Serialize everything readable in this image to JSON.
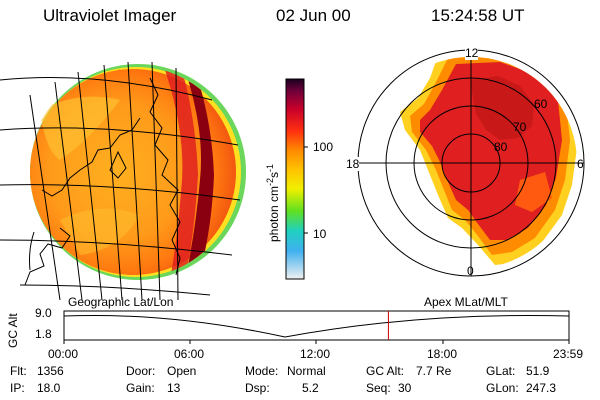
{
  "header": {
    "title": "Ultraviolet Imager",
    "date": "02 Jun 00",
    "time": "15:24:58 UT"
  },
  "colorbar": {
    "label": "photon cm",
    "unit_sup1": "-2",
    "unit_mid": "s",
    "unit_sup2": "-1",
    "ticks": [
      "100",
      "10"
    ]
  },
  "left_panel": {
    "caption": "Geographic Lat/Lon"
  },
  "right_panel": {
    "caption": "Apex MLat/MLT",
    "mlt_labels": {
      "top": "12",
      "left": "18",
      "right": "6",
      "bottom": "0"
    },
    "ring_labels": [
      "60",
      "70",
      "80"
    ]
  },
  "timeline": {
    "ylabel": "GC Alt",
    "ymax": "9.0",
    "ymin": "1.8",
    "ticks": [
      "00:00",
      "06:00",
      "12:00",
      "18:00",
      "23:59"
    ],
    "marker_fraction": 0.6424
  },
  "info": {
    "flt_label": "Flt:",
    "flt_value": "1356",
    "ip_label": "IP:",
    "ip_value": "18.0",
    "door_label": "Door:",
    "door_value": "Open",
    "gain_label": "Gain:",
    "gain_value": "13",
    "mode_label": "Mode:",
    "mode_value": "Normal",
    "dsp_label": "Dsp:",
    "dsp_value": "5.2",
    "gcalt_label": "GC Alt:",
    "gcalt_value": "7.7 Re",
    "seq_label": "Seq:",
    "seq_value": "30",
    "glat_label": "GLat:",
    "glat_value": "51.9",
    "glon_label": "GLon:",
    "glon_value": "247.3"
  },
  "colors": {
    "marker": "#cc0000",
    "dark_band": "#8a0010",
    "red": "#e02020",
    "orange": "#ff8c00",
    "yellow": "#ffd000",
    "green": "#40d020",
    "cyan": "#20d0d0"
  }
}
